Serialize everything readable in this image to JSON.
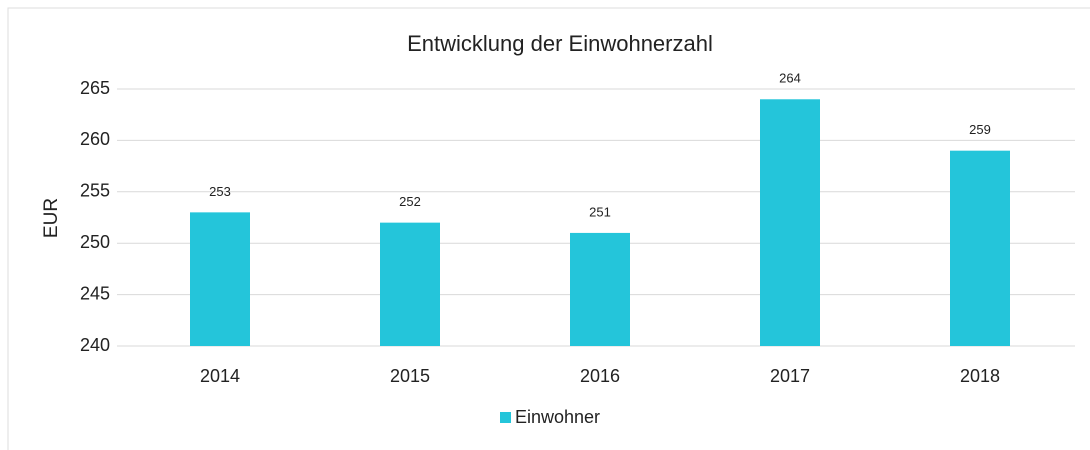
{
  "chart_data": {
    "type": "bar",
    "title": "Entwicklung der Einwohnerzahl",
    "y_label": "EUR",
    "categories": [
      "2014",
      "2015",
      "2016",
      "2017",
      "2018"
    ],
    "series": [
      {
        "name": "Einwohner",
        "color": "#24c5da",
        "values": [
          253,
          252,
          251,
          264,
          259
        ]
      }
    ],
    "ylim": [
      240,
      265
    ],
    "yticks": [
      240,
      245,
      250,
      255,
      260,
      265
    ],
    "grid": true,
    "legend": "bottom",
    "data_labels": true
  }
}
